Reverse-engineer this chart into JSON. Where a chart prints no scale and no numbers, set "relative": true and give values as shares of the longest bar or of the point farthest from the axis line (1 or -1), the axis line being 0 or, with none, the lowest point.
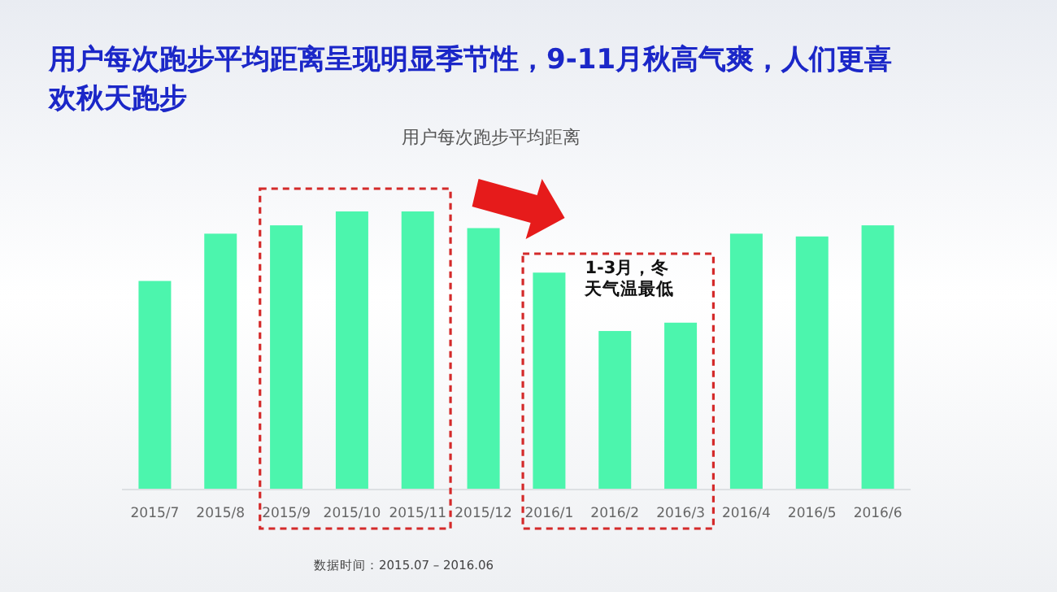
{
  "chart_data": {
    "type": "bar",
    "relative": true,
    "title": "用户每次跑步平均距离呈现明显季节性，9-11月秋高气爽，人们更喜欢秋天跑步",
    "subtitle": "用户每次跑步平均距离",
    "categories": [
      "2015/7",
      "2015/8",
      "2015/9",
      "2015/10",
      "2015/11",
      "2015/12",
      "2016/1",
      "2016/2",
      "2016/3",
      "2016/4",
      "2016/5",
      "2016/6"
    ],
    "values": [
      0.75,
      0.92,
      0.95,
      1.0,
      1.0,
      0.94,
      0.78,
      0.57,
      0.6,
      0.92,
      0.91,
      0.95
    ],
    "color": "#4cf5ad",
    "annotations": [
      "1-3月，冬天气温最低",
      "数据时间：2015.07 – 2016.06"
    ]
  }
}
